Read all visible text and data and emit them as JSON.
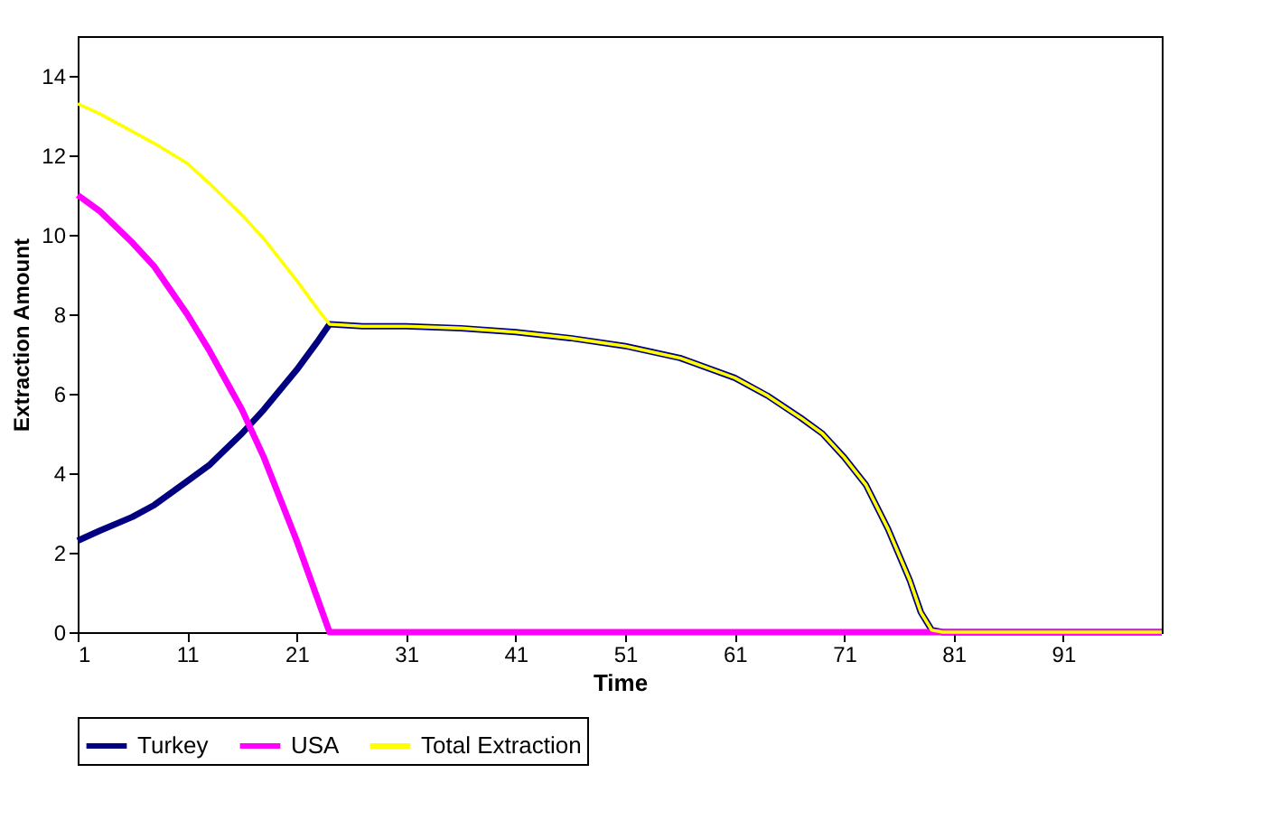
{
  "chart_data": {
    "type": "line",
    "xlabel": "Time",
    "ylabel": "Extraction Amount",
    "xlim": [
      1,
      100
    ],
    "xticks": [
      1,
      11,
      21,
      31,
      41,
      51,
      61,
      71,
      81,
      91
    ],
    "ylim": [
      0,
      15
    ],
    "yticks": [
      0,
      2,
      4,
      6,
      8,
      10,
      12,
      14
    ],
    "grid": false,
    "legend": "bottom",
    "marker": "none",
    "line_style": "solid",
    "series": [
      {
        "name": "Turkey",
        "color": "#000080",
        "x": [
          1,
          3,
          6,
          8,
          11,
          13,
          16,
          18,
          21,
          23,
          24,
          27,
          31,
          36,
          41,
          46,
          51,
          56,
          61,
          64,
          67,
          69,
          71,
          73,
          75,
          77,
          78,
          79,
          80,
          90,
          100
        ],
        "values": [
          2.3,
          2.55,
          2.9,
          3.2,
          3.8,
          4.2,
          5.0,
          5.6,
          6.6,
          7.35,
          7.75,
          7.7,
          7.7,
          7.65,
          7.55,
          7.4,
          7.2,
          6.9,
          6.4,
          5.95,
          5.4,
          5.0,
          4.4,
          3.7,
          2.6,
          1.3,
          0.5,
          0.05,
          0,
          0,
          0
        ]
      },
      {
        "name": "USA",
        "color": "#ff00ff",
        "x": [
          1,
          3,
          6,
          8,
          11,
          13,
          16,
          18,
          21,
          24,
          40,
          60,
          80,
          100
        ],
        "values": [
          11.0,
          10.6,
          9.8,
          9.2,
          8.0,
          7.1,
          5.6,
          4.4,
          2.3,
          0,
          0,
          0,
          0,
          0
        ]
      },
      {
        "name": "Total Extraction",
        "color": "#ffff00",
        "x": [
          1,
          3,
          6,
          8,
          11,
          13,
          16,
          18,
          21,
          23,
          24,
          27,
          31,
          36,
          41,
          46,
          51,
          56,
          61,
          64,
          67,
          69,
          71,
          73,
          75,
          77,
          78,
          79,
          80,
          90,
          100
        ],
        "values": [
          13.3,
          13.05,
          12.6,
          12.3,
          11.8,
          11.3,
          10.5,
          9.9,
          8.85,
          8.1,
          7.75,
          7.7,
          7.7,
          7.65,
          7.55,
          7.4,
          7.2,
          6.9,
          6.4,
          5.95,
          5.4,
          5.0,
          4.4,
          3.7,
          2.6,
          1.3,
          0.5,
          0.05,
          0,
          0,
          0
        ]
      }
    ]
  }
}
